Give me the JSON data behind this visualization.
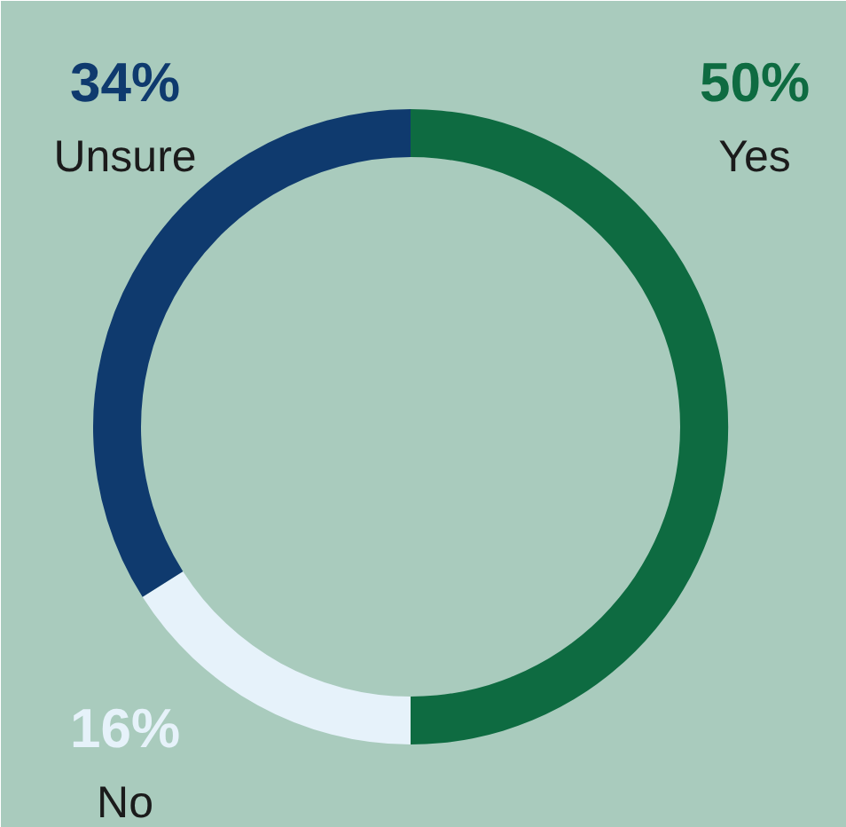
{
  "chart_data": {
    "type": "donut",
    "categories": [
      "Yes",
      "No",
      "Unsure"
    ],
    "values": [
      50,
      16,
      34
    ],
    "value_labels": [
      "50%",
      "16%",
      "34%"
    ],
    "colors": [
      "#0e6b41",
      "#e6f2fa",
      "#0f3a6e"
    ]
  }
}
